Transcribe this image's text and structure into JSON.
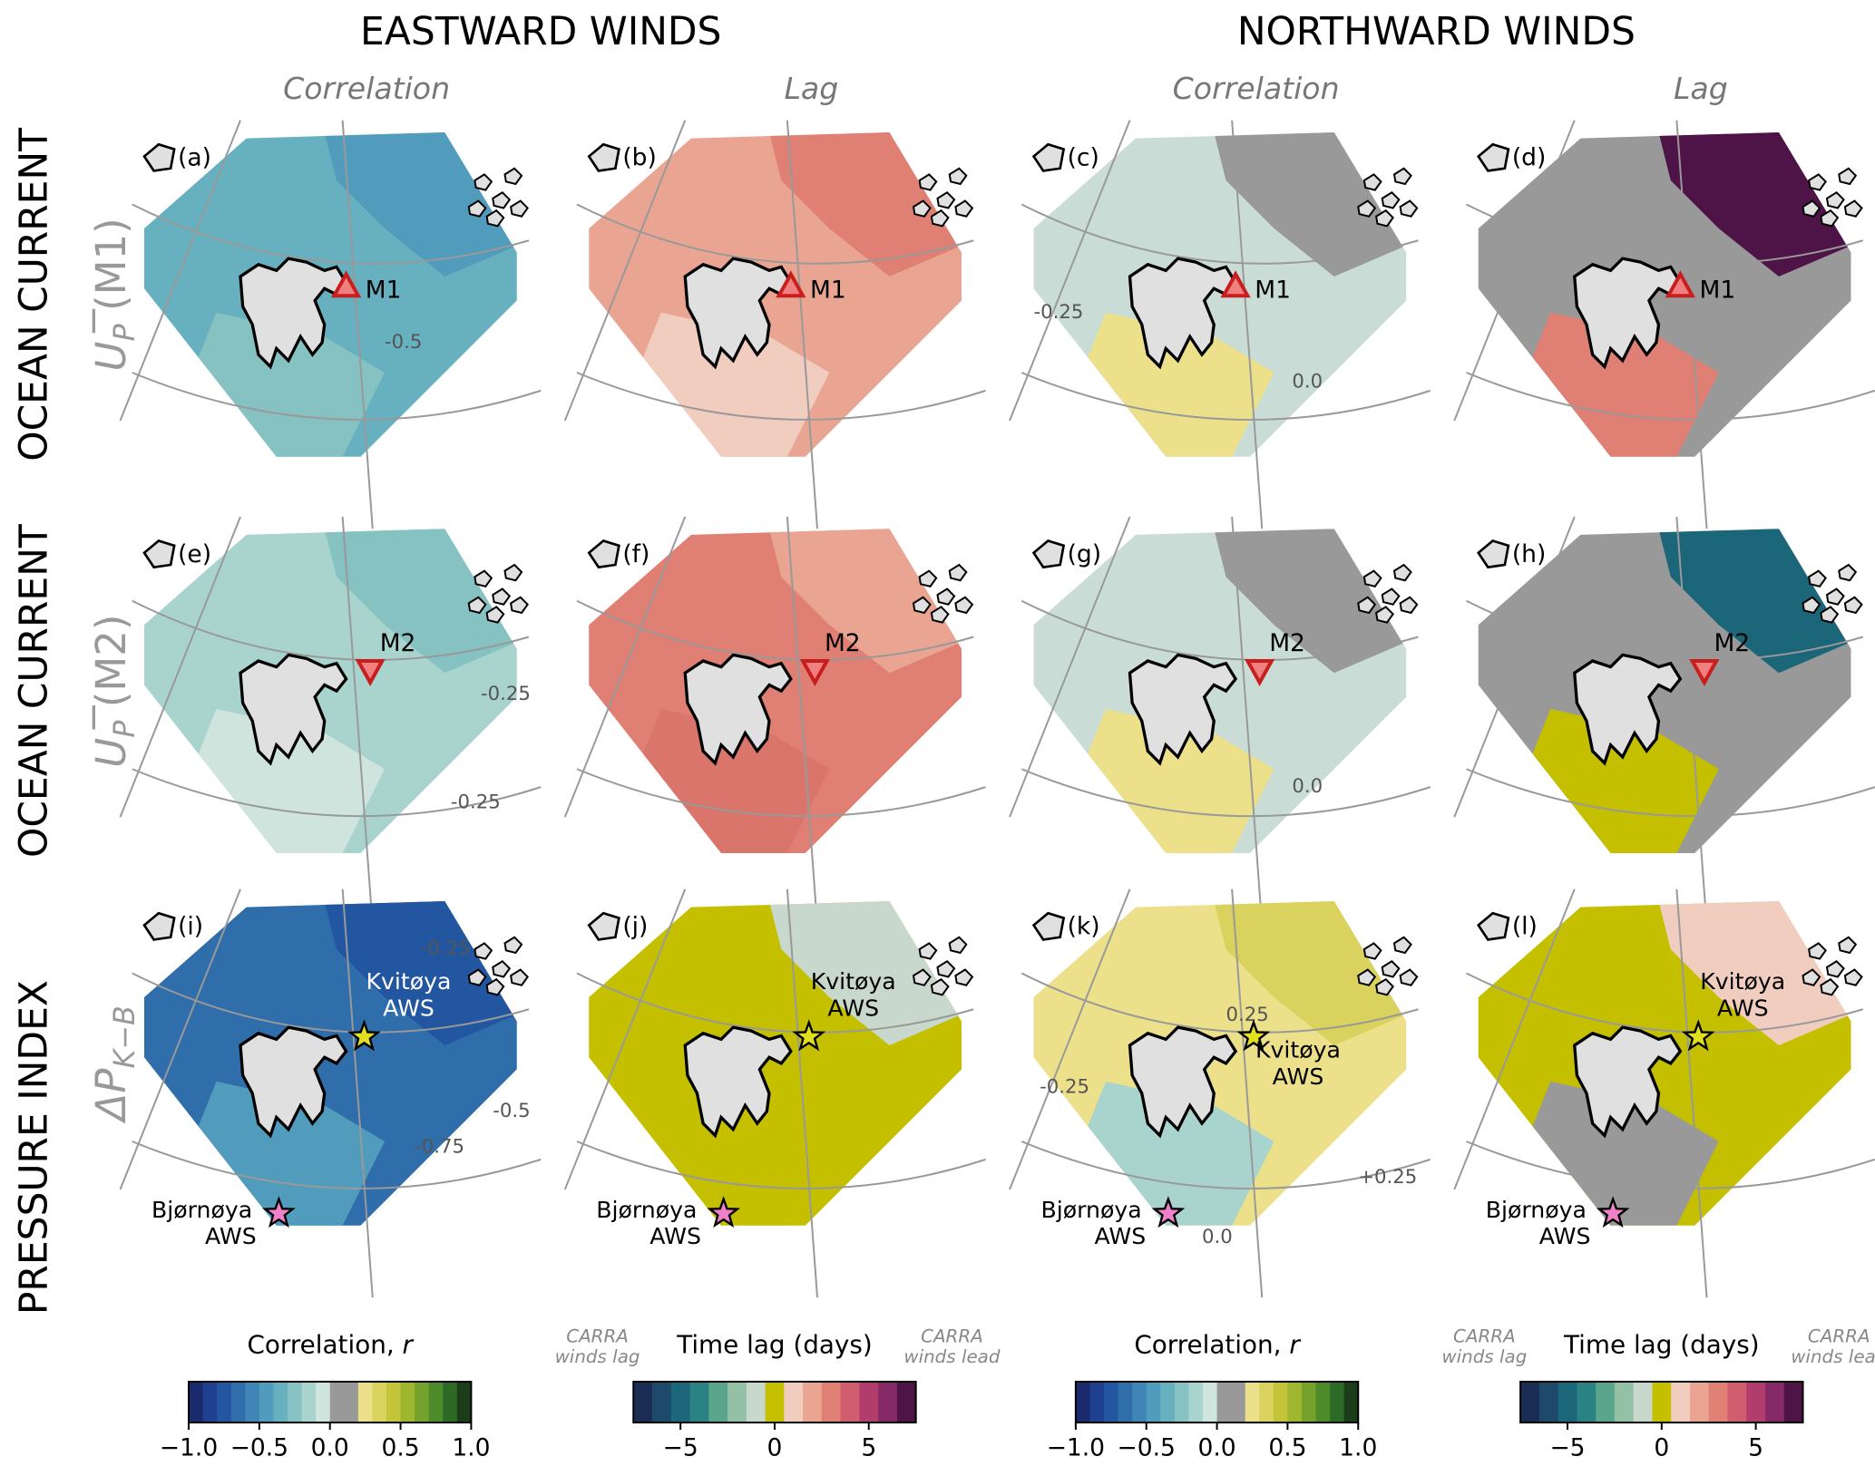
{
  "column_groups": [
    "EASTWARD WINDS",
    "NORTHWARD WINDS"
  ],
  "columns": [
    "Correlation",
    "Lag",
    "Correlation",
    "Lag"
  ],
  "rows": [
    {
      "title": "OCEAN CURRENT",
      "symbol": "U",
      "subscript": "P",
      "suffix": " (M1)",
      "marker": "M1"
    },
    {
      "title": "OCEAN CURRENT",
      "symbol": "U",
      "subscript": "P",
      "suffix": " (M2)",
      "marker": "M2"
    },
    {
      "title": "PRESSURE INDEX",
      "symbol": "ΔP",
      "subscript": "K−B",
      "suffix": ""
    }
  ],
  "stations": [
    {
      "name": "Kvitøya",
      "sub": "AWS"
    },
    {
      "name": "Bjørnøya",
      "sub": "AWS"
    }
  ],
  "panels": [
    {
      "label": "(a)",
      "colors": [
        "#66b0bf",
        "#519cbc",
        "#86c2c2"
      ],
      "contours": [
        "-0.5"
      ]
    },
    {
      "label": "(b)",
      "colors": [
        "#e9a591",
        "#e07f73",
        "#f1cdbf"
      ],
      "contours": []
    },
    {
      "label": "(c)",
      "colors": [
        "#c9ddd6",
        "#999999",
        "#ece08a"
      ],
      "contours": [
        "-0.25",
        "0.0"
      ]
    },
    {
      "label": "(d)",
      "colors": [
        "#999999",
        "#4e1447",
        "#e07f73"
      ],
      "contours": []
    },
    {
      "label": "(e)",
      "colors": [
        "#a9d4ce",
        "#86c2c2",
        "#cfe4dc"
      ],
      "contours": [
        "-0.25",
        "-0.25"
      ]
    },
    {
      "label": "(f)",
      "colors": [
        "#e07f73",
        "#e9a591",
        "#d9756b"
      ],
      "contours": []
    },
    {
      "label": "(g)",
      "colors": [
        "#c9ddd6",
        "#999999",
        "#ece08a"
      ],
      "contours": [
        "0.0"
      ]
    },
    {
      "label": "(h)",
      "colors": [
        "#999999",
        "#1b6678",
        "#c4c000"
      ],
      "contours": []
    },
    {
      "label": "(i)",
      "colors": [
        "#2f6dab",
        "#2356a0",
        "#519cbc"
      ],
      "contours": [
        "-0.25",
        "-0.5",
        "-0.75"
      ]
    },
    {
      "label": "(j)",
      "colors": [
        "#c4c000",
        "#c9d8cc",
        "#c4c000"
      ],
      "contours": []
    },
    {
      "label": "(k)",
      "colors": [
        "#ece08a",
        "#d9d25e",
        "#a9d4ce"
      ],
      "contours": [
        "-0.25",
        "0.25",
        "+0.25",
        "0.0"
      ]
    },
    {
      "label": "(l)",
      "colors": [
        "#c4c000",
        "#f1cdbf",
        "#999999"
      ],
      "contours": []
    }
  ],
  "colorbars": [
    {
      "title": "Correlation,",
      "variable": "r",
      "lim": [
        -1,
        1
      ],
      "ticks": [
        {
          "value": -1,
          "label": "−1.0"
        },
        {
          "value": -0.5,
          "label": "−0.5"
        },
        {
          "value": 0,
          "label": "0.0"
        },
        0.5,
        {
          "value": 1,
          "label": "1.0"
        }
      ],
      "colors": [
        "#1a2a6c",
        "#1f3f8f",
        "#2356a0",
        "#2f6dab",
        "#3f86b6",
        "#519cbc",
        "#66b0bf",
        "#86c2c2",
        "#a9d4ce",
        "#cfe4dc",
        "#999999",
        "#999999",
        "#ece08a",
        "#d9d25e",
        "#c4c43a",
        "#9fb62f",
        "#74a22c",
        "#4c8a2a",
        "#2d6a25",
        "#1b3d1a"
      ]
    },
    {
      "title": "Time lag (days)",
      "left_note": [
        "CARRA",
        "winds lag"
      ],
      "right_note": [
        "CARRA",
        "winds lead"
      ],
      "lim": [
        -7.5,
        7.5
      ],
      "ticks": [
        {
          "value": -5,
          "label": "−5"
        },
        0,
        5
      ],
      "colors": [
        "#1c2d55",
        "#1d4a6b",
        "#1b6678",
        "#2a8284",
        "#5aa58c",
        "#94c0a6",
        "#c9d8cc",
        "#c4c000",
        "#f1cdbf",
        "#e9a591",
        "#e07f73",
        "#cf5d6e",
        "#b03d6c",
        "#862a67",
        "#4e1447"
      ]
    },
    {
      "title": "Correlation,",
      "variable": "r",
      "lim": [
        -1,
        1
      ],
      "ticks": [
        {
          "value": -1,
          "label": "−1.0"
        },
        {
          "value": -0.5,
          "label": "−0.5"
        },
        {
          "value": 0,
          "label": "0.0"
        },
        0.5,
        {
          "value": 1,
          "label": "1.0"
        }
      ],
      "colors": [
        "#1a2a6c",
        "#1f3f8f",
        "#2356a0",
        "#2f6dab",
        "#3f86b6",
        "#519cbc",
        "#66b0bf",
        "#86c2c2",
        "#a9d4ce",
        "#cfe4dc",
        "#999999",
        "#999999",
        "#ece08a",
        "#d9d25e",
        "#c4c43a",
        "#9fb62f",
        "#74a22c",
        "#4c8a2a",
        "#2d6a25",
        "#1b3d1a"
      ]
    },
    {
      "title": "Time lag (days)",
      "left_note": [
        "CARRA",
        "winds lag"
      ],
      "right_note": [
        "CARRA",
        "winds lead"
      ],
      "lim": [
        -7.5,
        7.5
      ],
      "ticks": [
        {
          "value": -5,
          "label": "−5"
        },
        0,
        5
      ],
      "colors": [
        "#1c2d55",
        "#1d4a6b",
        "#1b6678",
        "#2a8284",
        "#5aa58c",
        "#94c0a6",
        "#c9d8cc",
        "#c4c000",
        "#f1cdbf",
        "#e9a591",
        "#e07f73",
        "#cf5d6e",
        "#b03d6c",
        "#862a67",
        "#4e1447"
      ]
    }
  ]
}
